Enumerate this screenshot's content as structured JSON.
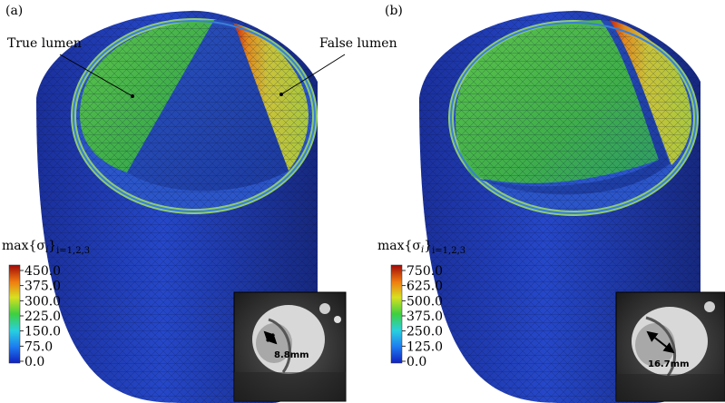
{
  "colors": {
    "outer_wall": "#1f3fbf",
    "wall_dark": "#12287a",
    "true_lumen_fill": "#3fae4a",
    "false_lumen_fill": "#c9c23a",
    "stress_high": "#b40d0d",
    "ring_highlight": "#9bdc6a",
    "mesh_line": "#0a1440"
  },
  "icons": {
    "arrow": "double-headed-arrow-icon",
    "leader": "pointer-line-icon"
  },
  "panel_a": {
    "label": "(a)",
    "annotations": {
      "true_lumen": "True lumen",
      "false_lumen": "False lumen"
    },
    "colorbar": {
      "title_main": "max{σ",
      "title_sub_i": "i",
      "title_close": "}",
      "title_index": "i=1,2,3",
      "ticks": [
        "450.0",
        "375.0",
        "300.0",
        "225.0",
        "150.0",
        "75.0",
        "0.0"
      ]
    },
    "inset": {
      "measurement": "8.8mm"
    }
  },
  "panel_b": {
    "label": "(b)",
    "colorbar": {
      "title_main": "max{σ",
      "title_sub_i": "i",
      "title_close": "}",
      "title_index": "i=1,2,3",
      "ticks": [
        "750.0",
        "625.0",
        "500.0",
        "375.0",
        "250.0",
        "125.0",
        "0.0"
      ]
    },
    "inset": {
      "measurement": "16.7mm"
    }
  }
}
